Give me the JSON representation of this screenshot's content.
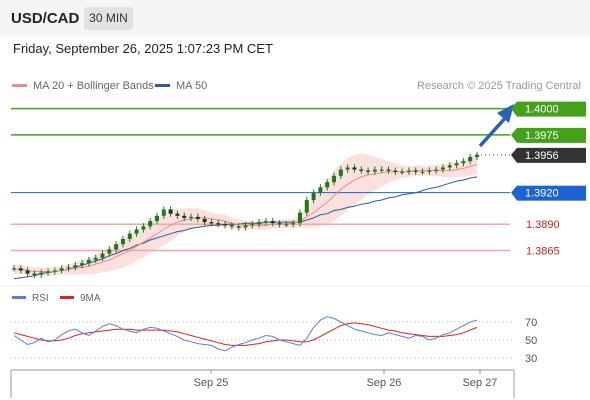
{
  "header": {
    "symbol": "USD/CAD",
    "timeframe": "30 MIN"
  },
  "datetime": "Friday, September 26, 2025 1:07:23 PM CET",
  "legend": {
    "ma20_label": "MA 20 + Bollinger Bands",
    "ma50_label": "MA 50",
    "ma20_color": "#f08a8a",
    "ma50_color": "#2d5b96",
    "credit": "Research © 2025 Trading Central"
  },
  "rsi_legend": {
    "rsi_label": "RSI",
    "ma_label": "9MA",
    "rsi_color": "#5b7fd6",
    "ma_color": "#dd2222"
  },
  "colors": {
    "green": "#44a11a",
    "blue": "#1e63d6",
    "red": "#cc2222",
    "pink_line": "#f2a6a6",
    "dark_box": "#333333",
    "candle": "#1a7a1a",
    "band_fill": "#fbe0e0"
  },
  "chart_data": [
    {
      "type": "line",
      "subtype": "candlestick",
      "ylim": [
        1.3835,
        1.4012
      ],
      "x_ticks": [
        "Sep 25",
        "Sep 26",
        "Sep 27"
      ],
      "levels": [
        {
          "value": "1.4000",
          "kind": "target",
          "color": "#44a11a"
        },
        {
          "value": "1.3975",
          "kind": "target",
          "color": "#44a11a"
        },
        {
          "value": "1.3956",
          "kind": "last",
          "color": "#333333"
        },
        {
          "value": "1.3920",
          "kind": "pivot",
          "color": "#1e63d6"
        },
        {
          "value": "1.3890",
          "kind": "support",
          "color": "#cc2222"
        },
        {
          "value": "1.3865",
          "kind": "support",
          "color": "#cc2222"
        }
      ],
      "price": [
        1.3848,
        1.3846,
        1.3843,
        1.3842,
        1.3844,
        1.3845,
        1.3846,
        1.3848,
        1.3849,
        1.3851,
        1.3853,
        1.3856,
        1.3858,
        1.3862,
        1.3866,
        1.3871,
        1.3876,
        1.3881,
        1.3885,
        1.3888,
        1.3893,
        1.3898,
        1.3904,
        1.39,
        1.3898,
        1.3896,
        1.3897,
        1.3895,
        1.3892,
        1.3891,
        1.389,
        1.3889,
        1.3888,
        1.3887,
        1.3889,
        1.389,
        1.3892,
        1.3893,
        1.3891,
        1.389,
        1.389,
        1.3891,
        1.3901,
        1.3913,
        1.392,
        1.3925,
        1.393,
        1.3936,
        1.3942,
        1.3944,
        1.3942,
        1.3941,
        1.394,
        1.3942,
        1.3942,
        1.3941,
        1.394,
        1.394,
        1.3941,
        1.394,
        1.394,
        1.3941,
        1.3942,
        1.3944,
        1.3946,
        1.3948,
        1.395,
        1.3954,
        1.3956
      ],
      "ma50": [
        1.3838,
        1.3839,
        1.384,
        1.3841,
        1.3843,
        1.3844,
        1.3845,
        1.3846,
        1.3847,
        1.3849,
        1.3851,
        1.3853,
        1.3855,
        1.3857,
        1.386,
        1.3862,
        1.3865,
        1.3867,
        1.387,
        1.3872,
        1.3875,
        1.3877,
        1.3879,
        1.3881,
        1.3883,
        1.3884,
        1.3886,
        1.3887,
        1.3888,
        1.3889,
        1.3889,
        1.389,
        1.389,
        1.389,
        1.3891,
        1.3891,
        1.3891,
        1.3892,
        1.3892,
        1.3892,
        1.3892,
        1.3892,
        1.3892,
        1.3894,
        1.3896,
        1.3899,
        1.39,
        1.3903,
        1.3904,
        1.3906,
        1.3907,
        1.3909,
        1.391,
        1.3912,
        1.3913,
        1.3915,
        1.3916,
        1.3918,
        1.3919,
        1.392,
        1.3922,
        1.3924,
        1.3925,
        1.3927,
        1.3929,
        1.3931,
        1.3932,
        1.3934,
        1.3935
      ],
      "ma20": [
        1.3847,
        1.3847,
        1.3846,
        1.3845,
        1.3845,
        1.3845,
        1.3845,
        1.3846,
        1.3847,
        1.3848,
        1.3849,
        1.385,
        1.3852,
        1.3854,
        1.3856,
        1.3859,
        1.3862,
        1.3865,
        1.3869,
        1.3873,
        1.3877,
        1.3881,
        1.3885,
        1.3889,
        1.3892,
        1.3894,
        1.3895,
        1.3896,
        1.3896,
        1.3895,
        1.3894,
        1.3893,
        1.3891,
        1.389,
        1.3889,
        1.3889,
        1.3889,
        1.3889,
        1.389,
        1.389,
        1.3891,
        1.3891,
        1.3893,
        1.3897,
        1.3901,
        1.3906,
        1.3911,
        1.3917,
        1.3923,
        1.3928,
        1.3932,
        1.3935,
        1.3937,
        1.3938,
        1.3939,
        1.394,
        1.394,
        1.394,
        1.394,
        1.3941,
        1.3941,
        1.3941,
        1.3941,
        1.3941,
        1.3941,
        1.3942,
        1.3943,
        1.3945,
        1.3947
      ],
      "band_width": [
        0.0004,
        0.0004,
        0.0004,
        0.0004,
        0.0004,
        0.0004,
        0.0004,
        0.0004,
        0.0005,
        0.0006,
        0.0007,
        0.0008,
        0.0009,
        0.001,
        0.0011,
        0.0012,
        0.0013,
        0.0014,
        0.0014,
        0.0015,
        0.0015,
        0.0015,
        0.0015,
        0.0015,
        0.0013,
        0.0011,
        0.001,
        0.0009,
        0.0007,
        0.0006,
        0.0006,
        0.0006,
        0.0005,
        0.0005,
        0.0004,
        0.0004,
        0.0004,
        0.0004,
        0.0004,
        0.0004,
        0.0004,
        0.0004,
        0.0006,
        0.001,
        0.0014,
        0.0018,
        0.0021,
        0.0024,
        0.0025,
        0.0025,
        0.0024,
        0.0022,
        0.0019,
        0.0016,
        0.0013,
        0.001,
        0.0008,
        0.0006,
        0.0005,
        0.0005,
        0.0005,
        0.0005,
        0.0005,
        0.0006,
        0.0007,
        0.0007,
        0.0008,
        0.0009,
        0.001
      ]
    },
    {
      "type": "line",
      "subtype": "oscillator",
      "ylim": [
        20,
        80
      ],
      "y_ticks": [
        "70",
        "50",
        "30"
      ],
      "rsi": [
        55,
        50,
        45,
        47,
        52,
        48,
        50,
        56,
        60,
        62,
        58,
        55,
        60,
        65,
        68,
        66,
        62,
        60,
        58,
        62,
        64,
        63,
        60,
        57,
        54,
        50,
        48,
        46,
        45,
        44,
        40,
        38,
        42,
        45,
        47,
        50,
        52,
        55,
        54,
        50,
        48,
        46,
        44,
        52,
        64,
        72,
        76,
        74,
        70,
        66,
        62,
        60,
        58,
        56,
        55,
        58,
        56,
        54,
        52,
        55,
        54,
        50,
        52,
        56,
        58,
        62,
        66,
        70,
        72
      ],
      "rsi_ma": [
        58,
        56,
        54,
        52,
        50,
        49,
        49,
        50,
        52,
        55,
        57,
        58,
        59,
        60,
        61,
        62,
        62,
        62,
        61,
        61,
        61,
        61,
        61,
        60,
        59,
        57,
        55,
        53,
        51,
        49,
        47,
        45,
        44,
        44,
        44,
        45,
        46,
        48,
        49,
        50,
        50,
        49,
        48,
        48,
        50,
        54,
        58,
        62,
        66,
        68,
        69,
        68,
        67,
        65,
        63,
        61,
        60,
        58,
        57,
        56,
        55,
        54,
        54,
        54,
        55,
        56,
        58,
        61,
        64
      ]
    }
  ]
}
